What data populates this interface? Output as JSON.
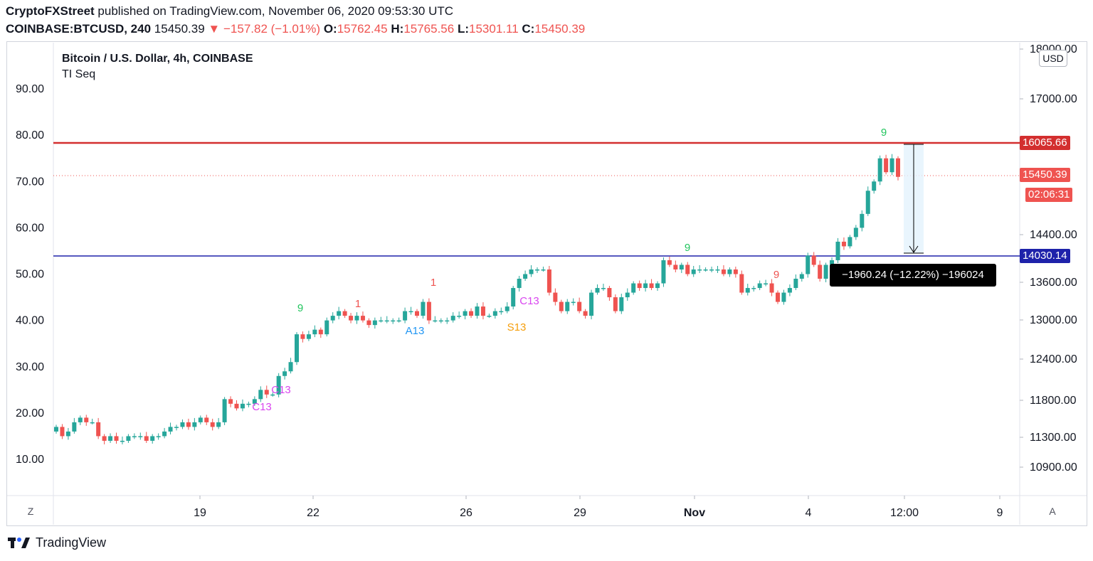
{
  "header": {
    "publisher": "CryptoFXStreet",
    "published_text": "published on TradingView.com, November 06, 2020 09:53:30 UTC",
    "symbol": "COINBASE:BTCUSD, 240",
    "last": "15450.39",
    "change": "−157.82 (−1.01%)",
    "open_label": "O:",
    "open": "15762.45",
    "high_label": "H:",
    "high": "15765.56",
    "low_label": "L:",
    "low": "15301.11",
    "close_label": "C:",
    "close": "15450.39"
  },
  "legend": {
    "title": "Bitcoin / U.S. Dollar, 4h, COINBASE",
    "indicator": "TI Seq"
  },
  "toolbar": {
    "currency": "USD",
    "left_btn": "Z",
    "right_btn": "A"
  },
  "tags": {
    "resistance": "16065.66",
    "last_price": "15450.39",
    "countdown": "02:06:31",
    "support": "14030.14"
  },
  "measure": {
    "text": "−1960.24 (−12.22%) −196024"
  },
  "footer": {
    "brand": "TradingView"
  },
  "colors": {
    "up": "#26a69a",
    "down": "#ef5350",
    "resistance": "#d32f2f",
    "support": "#1e22aa",
    "green_label": "#22c55e",
    "red_label": "#ef5350",
    "magenta_label": "#d946ef",
    "blue_label": "#2196f3",
    "orange_label": "#f59e0b"
  },
  "chart_data": {
    "type": "candlestick",
    "title": "Bitcoin / U.S. Dollar, 4h, COINBASE",
    "price_axis": {
      "ticks": [
        {
          "v": 18000,
          "label": "18000.00"
        },
        {
          "v": 17000,
          "label": "17000.00"
        },
        {
          "v": 14400,
          "label": "14400.00"
        },
        {
          "v": 13600,
          "label": "13600.00"
        },
        {
          "v": 13000,
          "label": "13000.00"
        },
        {
          "v": 12400,
          "label": "12400.00"
        },
        {
          "v": 11800,
          "label": "11800.00"
        },
        {
          "v": 11300,
          "label": "11300.00"
        },
        {
          "v": 10900,
          "label": "10900.00"
        }
      ]
    },
    "left_axis": {
      "ticks": [
        "90.00",
        "80.00",
        "70.00",
        "60.00",
        "50.00",
        "40.00",
        "30.00",
        "20.00",
        "10.00"
      ]
    },
    "x_axis": {
      "ticks": [
        {
          "label": "19",
          "bold": false
        },
        {
          "label": "22",
          "bold": false
        },
        {
          "label": "26",
          "bold": false
        },
        {
          "label": "29",
          "bold": false
        },
        {
          "label": "Nov",
          "bold": true
        },
        {
          "label": "4",
          "bold": false
        },
        {
          "label": "12:00",
          "bold": false
        },
        {
          "label": "9",
          "bold": false
        }
      ]
    },
    "levels": {
      "resistance": 16065.66,
      "last": 15450.39,
      "support": 14030.14
    },
    "candles_left_scale": [
      [
        16,
        17
      ],
      [
        17,
        15
      ],
      [
        15,
        16
      ],
      [
        16,
        18
      ],
      [
        18,
        19
      ],
      [
        19,
        18
      ],
      [
        18,
        18
      ],
      [
        18,
        15
      ],
      [
        15,
        14
      ],
      [
        14,
        15
      ],
      [
        15,
        14
      ],
      [
        14,
        14
      ],
      [
        14,
        15
      ],
      [
        15,
        15
      ],
      [
        15,
        15
      ],
      [
        15,
        14
      ],
      [
        14,
        15
      ],
      [
        15,
        15
      ],
      [
        15,
        16
      ],
      [
        16,
        17
      ],
      [
        17,
        17
      ],
      [
        17,
        18
      ],
      [
        18,
        17
      ],
      [
        17,
        18
      ],
      [
        18,
        19
      ],
      [
        19,
        18
      ],
      [
        18,
        17
      ],
      [
        17,
        18
      ],
      [
        18,
        23
      ],
      [
        23,
        22
      ],
      [
        22,
        21
      ],
      [
        21,
        22
      ],
      [
        22,
        22
      ],
      [
        22,
        23
      ],
      [
        23,
        25
      ],
      [
        25,
        24
      ],
      [
        24,
        24
      ],
      [
        24,
        28
      ],
      [
        28,
        29
      ],
      [
        29,
        31
      ],
      [
        31,
        37
      ],
      [
        37,
        36
      ],
      [
        36,
        37
      ],
      [
        37,
        38
      ],
      [
        38,
        37
      ],
      [
        37,
        40
      ],
      [
        40,
        41
      ],
      [
        41,
        42
      ],
      [
        42,
        41
      ],
      [
        41,
        40
      ],
      [
        40,
        41
      ],
      [
        41,
        40
      ],
      [
        40,
        39
      ],
      [
        39,
        40
      ],
      [
        40,
        40
      ],
      [
        40,
        40
      ],
      [
        40,
        40
      ],
      [
        40,
        40
      ],
      [
        40,
        42
      ],
      [
        42,
        42
      ],
      [
        42,
        41
      ],
      [
        41,
        44
      ],
      [
        44,
        40
      ],
      [
        40,
        40
      ],
      [
        40,
        40
      ],
      [
        40,
        40
      ],
      [
        40,
        41
      ],
      [
        41,
        41
      ],
      [
        41,
        42
      ],
      [
        42,
        41
      ],
      [
        41,
        43
      ],
      [
        43,
        41
      ],
      [
        41,
        41
      ],
      [
        41,
        42
      ],
      [
        42,
        42
      ],
      [
        42,
        43
      ],
      [
        43,
        47
      ],
      [
        47,
        49
      ],
      [
        49,
        50
      ],
      [
        50,
        51
      ],
      [
        51,
        51
      ],
      [
        51,
        51
      ],
      [
        51,
        46
      ],
      [
        46,
        44
      ],
      [
        44,
        42
      ],
      [
        42,
        44
      ],
      [
        44,
        44
      ],
      [
        44,
        42
      ],
      [
        42,
        41
      ],
      [
        41,
        46
      ],
      [
        46,
        47
      ],
      [
        47,
        47
      ],
      [
        47,
        45
      ],
      [
        45,
        42
      ],
      [
        42,
        45
      ],
      [
        45,
        46
      ],
      [
        46,
        48
      ],
      [
        48,
        47
      ],
      [
        47,
        48
      ],
      [
        48,
        47
      ],
      [
        47,
        48
      ],
      [
        48,
        53
      ],
      [
        53,
        52
      ],
      [
        52,
        51
      ],
      [
        51,
        52
      ],
      [
        52,
        50
      ],
      [
        50,
        51
      ],
      [
        51,
        51
      ],
      [
        51,
        51
      ],
      [
        51,
        51
      ],
      [
        51,
        51
      ],
      [
        51,
        50
      ],
      [
        50,
        51
      ],
      [
        51,
        50
      ],
      [
        50,
        46
      ],
      [
        46,
        47
      ],
      [
        47,
        47
      ],
      [
        47,
        48
      ],
      [
        48,
        48
      ],
      [
        48,
        46
      ],
      [
        46,
        44
      ],
      [
        44,
        46
      ],
      [
        46,
        47
      ],
      [
        47,
        49
      ],
      [
        49,
        50
      ],
      [
        50,
        54
      ],
      [
        54,
        52
      ],
      [
        52,
        49
      ],
      [
        49,
        52
      ],
      [
        52,
        53
      ],
      [
        53,
        57
      ],
      [
        57,
        56
      ],
      [
        56,
        58
      ],
      [
        58,
        60
      ],
      [
        60,
        63
      ],
      [
        63,
        68
      ],
      [
        68,
        70
      ],
      [
        70,
        75
      ],
      [
        75,
        72
      ],
      [
        72,
        75
      ],
      [
        75,
        71
      ]
    ],
    "seq_labels": [
      {
        "text": "9",
        "color": "green"
      },
      {
        "text": "1",
        "color": "red"
      },
      {
        "text": "1",
        "color": "red"
      },
      {
        "text": "C13",
        "color": "magenta"
      },
      {
        "text": "C13",
        "color": "magenta"
      },
      {
        "text": "A13",
        "color": "blue"
      },
      {
        "text": "S13",
        "color": "orange"
      },
      {
        "text": "C13",
        "color": "magenta"
      },
      {
        "text": "9",
        "color": "green"
      },
      {
        "text": "9",
        "color": "red"
      },
      {
        "text": "9",
        "color": "green"
      }
    ]
  }
}
